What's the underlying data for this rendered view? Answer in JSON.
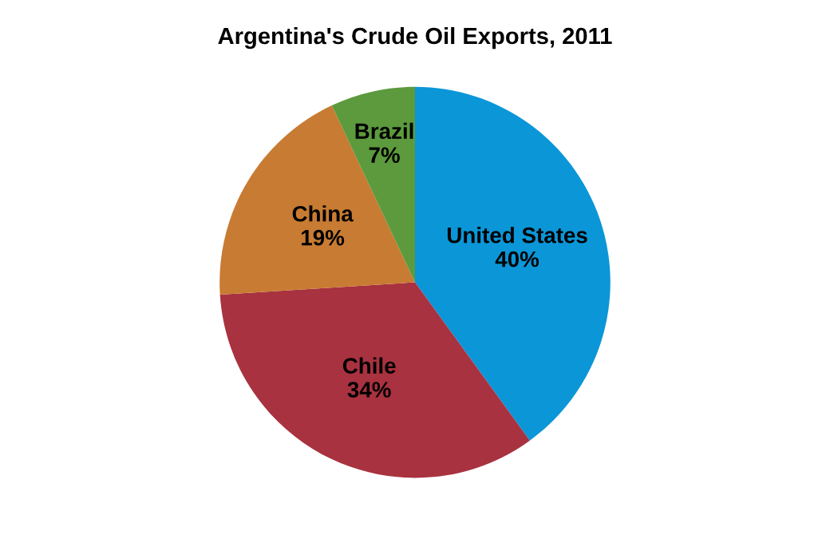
{
  "chart_data": {
    "type": "pie",
    "title": "Argentina's Crude Oil Exports, 2011",
    "categories": [
      "United States",
      "Chile",
      "China",
      "Brazil"
    ],
    "values": [
      40,
      34,
      19,
      7
    ],
    "colors": [
      "#0b96d8",
      "#a8323f",
      "#c87b32",
      "#5c9a3d"
    ],
    "value_labels": [
      "40%",
      "34%",
      "19%",
      "7%"
    ]
  }
}
